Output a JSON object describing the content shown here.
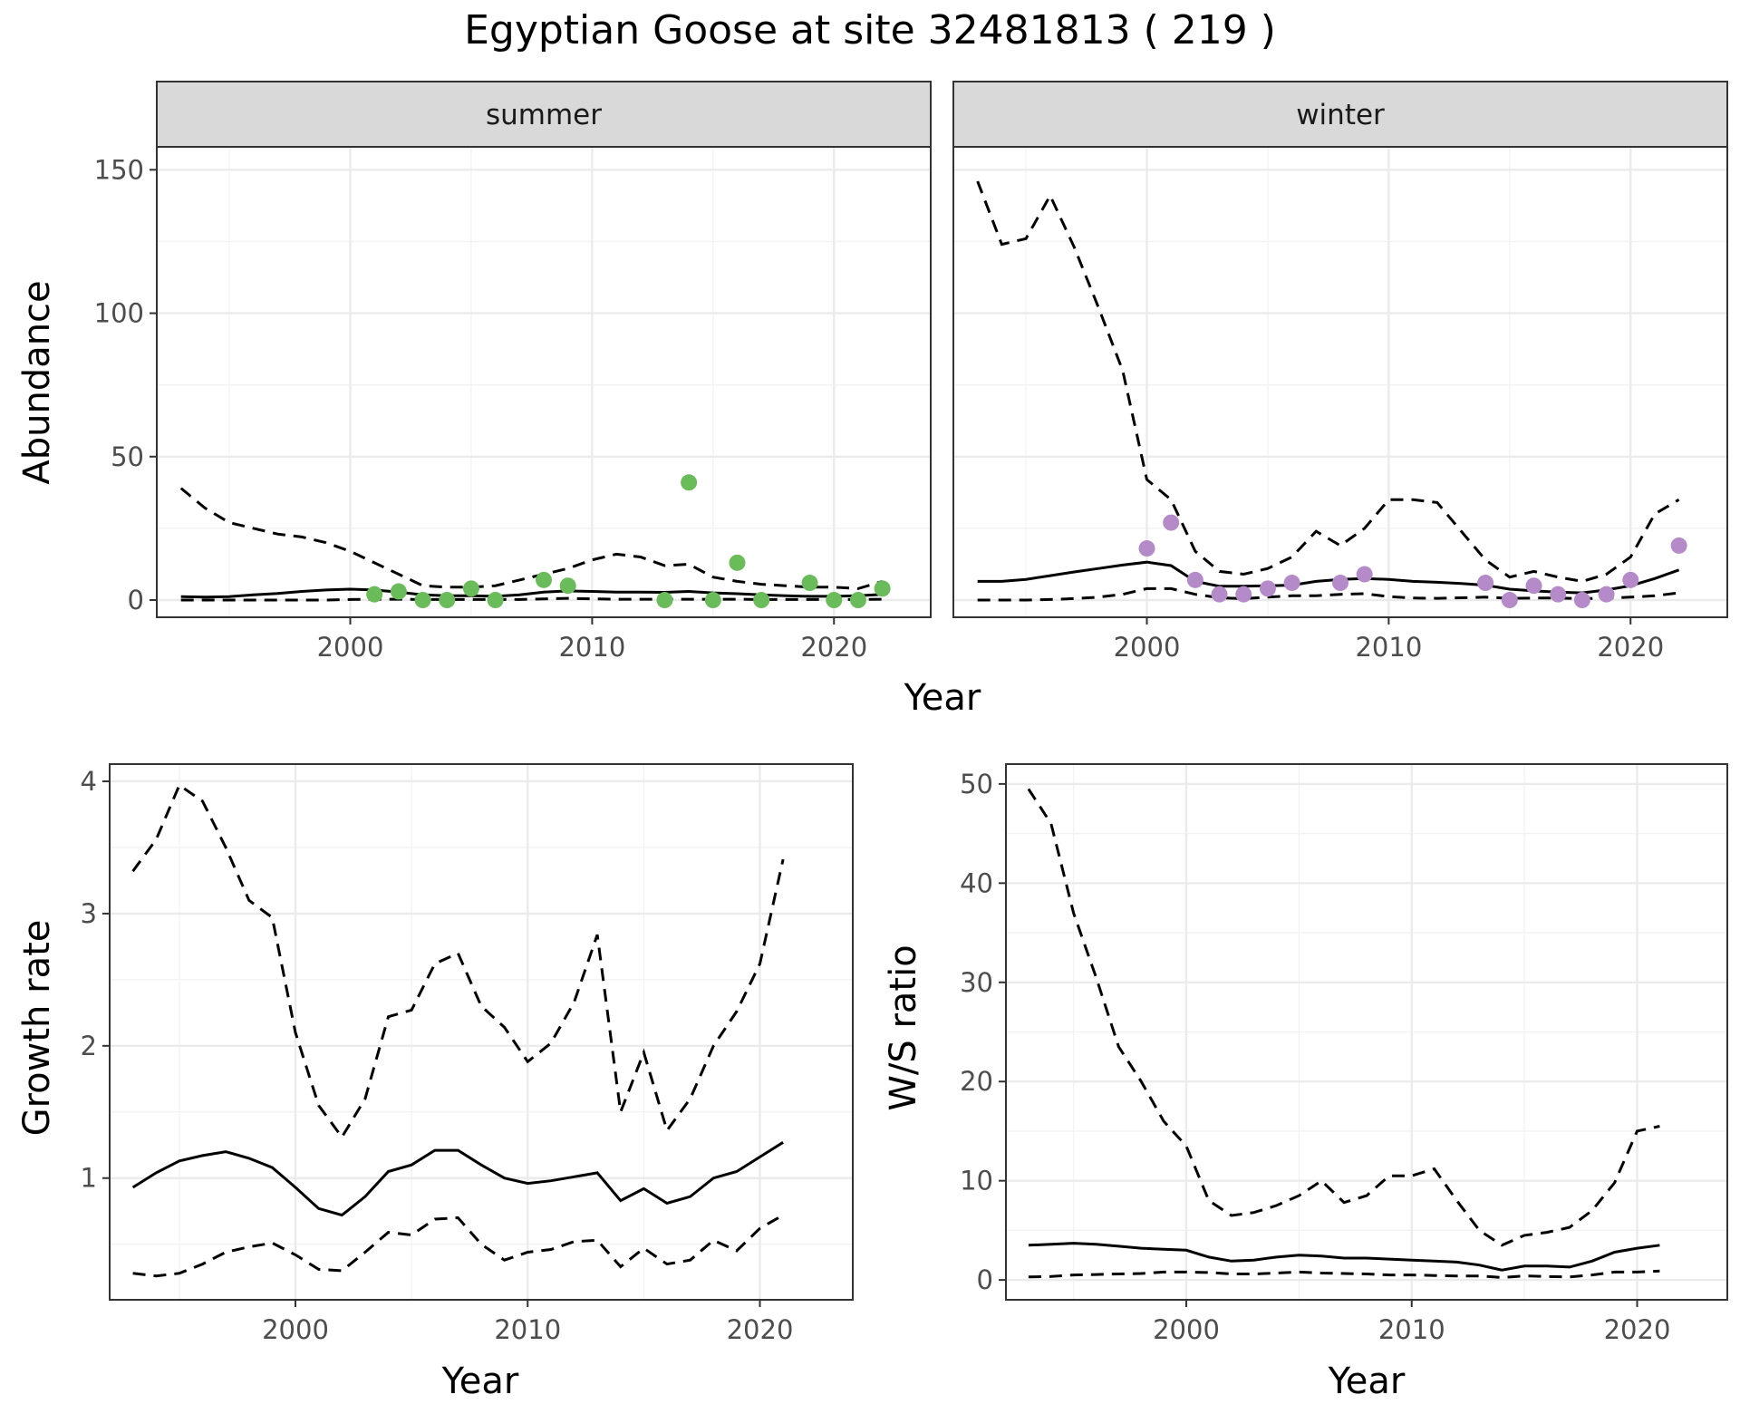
{
  "figure": {
    "title": "Egyptian Goose at site 32481813 ( 219 )"
  },
  "chart_data": [
    {
      "type": "line",
      "facet": "summer",
      "strip_label": "summer",
      "xlabel": "Year",
      "ylabel": "Abundance",
      "xlim": [
        1992,
        2024
      ],
      "ylim": [
        -6,
        158
      ],
      "xticks": [
        2000,
        2010,
        2020
      ],
      "yticks": [
        0,
        50,
        100,
        150
      ],
      "grid": true,
      "point_color": "#6abb5a",
      "series": [
        {
          "role": "mean",
          "style": "solid",
          "x": [
            1993,
            1994,
            1995,
            1996,
            1997,
            1998,
            1999,
            2000,
            2001,
            2002,
            2003,
            2004,
            2005,
            2006,
            2007,
            2008,
            2009,
            2010,
            2011,
            2012,
            2013,
            2014,
            2015,
            2016,
            2017,
            2018,
            2019,
            2020,
            2021,
            2022
          ],
          "y": [
            1.2,
            1.0,
            1.2,
            1.8,
            2.3,
            3.0,
            3.5,
            3.8,
            3.5,
            2.8,
            1.8,
            1.5,
            1.5,
            1.3,
            1.8,
            2.8,
            3.2,
            3.0,
            2.8,
            2.8,
            2.7,
            3.0,
            2.5,
            2.2,
            1.8,
            1.5,
            1.3,
            1.3,
            1.5,
            2.0
          ]
        },
        {
          "role": "upper",
          "style": "dashed",
          "x": [
            1993,
            1994,
            1995,
            1996,
            1997,
            1998,
            1999,
            2000,
            2001,
            2002,
            2003,
            2004,
            2005,
            2006,
            2007,
            2008,
            2009,
            2010,
            2011,
            2012,
            2013,
            2014,
            2015,
            2016,
            2017,
            2018,
            2019,
            2020,
            2021,
            2022
          ],
          "y": [
            39,
            32,
            27,
            25,
            23,
            22,
            20,
            17,
            13,
            9,
            5,
            4.5,
            4.5,
            5,
            7,
            9,
            11,
            14,
            16,
            15,
            12,
            12.5,
            8,
            6.5,
            5.5,
            5,
            4.5,
            4.5,
            4,
            6.5
          ]
        },
        {
          "role": "lower",
          "style": "dashed",
          "x": [
            1993,
            1994,
            1995,
            1996,
            1997,
            1998,
            1999,
            2000,
            2001,
            2002,
            2003,
            2004,
            2005,
            2006,
            2007,
            2008,
            2009,
            2010,
            2011,
            2012,
            2013,
            2014,
            2015,
            2016,
            2017,
            2018,
            2019,
            2020,
            2021,
            2022
          ],
          "y": [
            0,
            0,
            0,
            0,
            0,
            0,
            0,
            0.2,
            0.3,
            0.3,
            0.2,
            0.2,
            0.2,
            0.2,
            0.2,
            0.4,
            0.6,
            0.4,
            0.3,
            0.3,
            0.3,
            0.3,
            0.3,
            0.3,
            0.2,
            0.2,
            0.2,
            0.2,
            0.2,
            0.3
          ]
        }
      ],
      "points": {
        "x": [
          2001,
          2002,
          2003,
          2004,
          2005,
          2006,
          2008,
          2009,
          2013,
          2014,
          2015,
          2016,
          2017,
          2019,
          2020,
          2021,
          2022
        ],
        "y": [
          2,
          3,
          0,
          0,
          4,
          0,
          7,
          5,
          0,
          41,
          0,
          13,
          0,
          6,
          0,
          0,
          4
        ]
      }
    },
    {
      "type": "line",
      "facet": "winter",
      "strip_label": "winter",
      "xlabel": "Year",
      "ylabel": "Abundance",
      "xlim": [
        1992,
        2024
      ],
      "ylim": [
        -6,
        158
      ],
      "xticks": [
        2000,
        2010,
        2020
      ],
      "yticks": [
        0,
        50,
        100,
        150
      ],
      "grid": true,
      "point_color": "#b48bc8",
      "series": [
        {
          "role": "mean",
          "style": "solid",
          "x": [
            1993,
            1994,
            1995,
            1996,
            1997,
            1998,
            1999,
            2000,
            2001,
            2002,
            2003,
            2004,
            2005,
            2006,
            2007,
            2008,
            2009,
            2010,
            2011,
            2012,
            2013,
            2014,
            2015,
            2016,
            2017,
            2018,
            2019,
            2020,
            2021,
            2022
          ],
          "y": [
            6.5,
            6.5,
            7.2,
            8.5,
            9.8,
            11,
            12.2,
            13.2,
            12,
            6.5,
            4.8,
            4.8,
            5,
            5.2,
            6.5,
            7.2,
            7.5,
            7.2,
            6.5,
            6.2,
            5.8,
            5.2,
            3.8,
            3.2,
            2.8,
            2.5,
            3.5,
            5,
            7.5,
            10.5
          ]
        },
        {
          "role": "upper",
          "style": "dashed",
          "x": [
            1993,
            1994,
            1995,
            1996,
            1997,
            1998,
            1999,
            2000,
            2001,
            2002,
            2003,
            2004,
            2005,
            2006,
            2007,
            2008,
            2009,
            2010,
            2011,
            2012,
            2013,
            2014,
            2015,
            2016,
            2017,
            2018,
            2019,
            2020,
            2021,
            2022
          ],
          "y": [
            146,
            124,
            126,
            141,
            123,
            102,
            80,
            42,
            35,
            17,
            10,
            9,
            11,
            15,
            24,
            19,
            25,
            35,
            35,
            34,
            24,
            14,
            8,
            10,
            8,
            6.5,
            9,
            15,
            30,
            35
          ]
        },
        {
          "role": "lower",
          "style": "dashed",
          "x": [
            1993,
            1994,
            1995,
            1996,
            1997,
            1998,
            1999,
            2000,
            2001,
            2002,
            2003,
            2004,
            2005,
            2006,
            2007,
            2008,
            2009,
            2010,
            2011,
            2012,
            2013,
            2014,
            2015,
            2016,
            2017,
            2018,
            2019,
            2020,
            2021,
            2022
          ],
          "y": [
            0,
            0,
            0,
            0.2,
            0.5,
            1,
            2,
            4,
            4,
            2,
            0.8,
            0.5,
            1,
            1.5,
            1.5,
            2,
            2.2,
            1.2,
            0.7,
            0.6,
            0.8,
            1,
            0.6,
            0.7,
            0.7,
            0.5,
            0.6,
            1,
            1.5,
            2.5
          ]
        }
      ],
      "points": {
        "x": [
          2000,
          2001,
          2002,
          2003,
          2004,
          2005,
          2006,
          2008,
          2009,
          2014,
          2015,
          2016,
          2017,
          2018,
          2019,
          2020,
          2022
        ],
        "y": [
          18,
          27,
          7,
          2,
          2,
          4,
          6,
          6,
          9,
          6,
          0,
          5,
          2,
          0,
          2,
          7,
          19
        ]
      }
    },
    {
      "type": "line",
      "xlabel": "Year",
      "ylabel": "Growth rate",
      "xlim": [
        1992,
        2024
      ],
      "ylim": [
        0.08,
        4.13
      ],
      "xticks": [
        2000,
        2010,
        2020
      ],
      "yticks": [
        1,
        2,
        3,
        4
      ],
      "grid": true,
      "series": [
        {
          "role": "mean",
          "style": "solid",
          "x": [
            1993,
            1994,
            1995,
            1996,
            1997,
            1998,
            1999,
            2000,
            2001,
            2002,
            2003,
            2004,
            2005,
            2006,
            2007,
            2008,
            2009,
            2010,
            2011,
            2012,
            2013,
            2014,
            2015,
            2016,
            2017,
            2018,
            2019,
            2020,
            2021
          ],
          "y": [
            0.93,
            1.04,
            1.13,
            1.17,
            1.2,
            1.15,
            1.08,
            0.93,
            0.77,
            0.72,
            0.86,
            1.05,
            1.1,
            1.21,
            1.21,
            1.1,
            1.0,
            0.96,
            0.98,
            1.01,
            1.04,
            0.83,
            0.92,
            0.81,
            0.86,
            1.0,
            1.05,
            1.16,
            1.27
          ]
        },
        {
          "role": "upper",
          "style": "dashed",
          "x": [
            1993,
            1994,
            1995,
            1996,
            1997,
            1998,
            1999,
            2000,
            2001,
            2002,
            2003,
            2004,
            2005,
            2006,
            2007,
            2008,
            2009,
            2010,
            2011,
            2012,
            2013,
            2014,
            2015,
            2016,
            2017,
            2018,
            2019,
            2020,
            2021
          ],
          "y": [
            3.32,
            3.56,
            3.97,
            3.85,
            3.5,
            3.1,
            2.97,
            2.1,
            1.55,
            1.31,
            1.6,
            2.22,
            2.27,
            2.62,
            2.7,
            2.3,
            2.14,
            1.88,
            2.02,
            2.33,
            2.84,
            1.5,
            1.95,
            1.36,
            1.6,
            2.0,
            2.26,
            2.62,
            3.41
          ]
        },
        {
          "role": "lower",
          "style": "dashed",
          "x": [
            1993,
            1994,
            1995,
            1996,
            1997,
            1998,
            1999,
            2000,
            2001,
            2002,
            2003,
            2004,
            2005,
            2006,
            2007,
            2008,
            2009,
            2010,
            2011,
            2012,
            2013,
            2014,
            2015,
            2016,
            2017,
            2018,
            2019,
            2020,
            2021
          ],
          "y": [
            0.28,
            0.26,
            0.28,
            0.35,
            0.44,
            0.48,
            0.51,
            0.42,
            0.31,
            0.3,
            0.44,
            0.59,
            0.57,
            0.69,
            0.7,
            0.5,
            0.38,
            0.44,
            0.46,
            0.52,
            0.53,
            0.33,
            0.47,
            0.35,
            0.38,
            0.53,
            0.45,
            0.62,
            0.72
          ]
        }
      ]
    },
    {
      "type": "line",
      "xlabel": "Year",
      "ylabel": "W/S ratio",
      "xlim": [
        1992,
        2024
      ],
      "ylim": [
        -2,
        52
      ],
      "xticks": [
        2000,
        2010,
        2020
      ],
      "yticks": [
        0,
        10,
        20,
        30,
        40,
        50
      ],
      "grid": true,
      "series": [
        {
          "role": "mean",
          "style": "solid",
          "x": [
            1993,
            1994,
            1995,
            1996,
            1997,
            1998,
            1999,
            2000,
            2001,
            2002,
            2003,
            2004,
            2005,
            2006,
            2007,
            2008,
            2009,
            2010,
            2011,
            2012,
            2013,
            2014,
            2015,
            2016,
            2017,
            2018,
            2019,
            2020,
            2021
          ],
          "y": [
            3.5,
            3.6,
            3.7,
            3.6,
            3.4,
            3.2,
            3.1,
            3.0,
            2.3,
            1.9,
            2.0,
            2.3,
            2.5,
            2.4,
            2.2,
            2.2,
            2.1,
            2.0,
            1.9,
            1.8,
            1.5,
            1.0,
            1.4,
            1.4,
            1.3,
            1.9,
            2.8,
            3.2,
            3.5
          ]
        },
        {
          "role": "upper",
          "style": "dashed",
          "x": [
            1993,
            1994,
            1995,
            1996,
            1997,
            1998,
            1999,
            2000,
            2001,
            2002,
            2003,
            2004,
            2005,
            2006,
            2007,
            2008,
            2009,
            2010,
            2011,
            2012,
            2013,
            2014,
            2015,
            2016,
            2017,
            2018,
            2019,
            2020,
            2021
          ],
          "y": [
            49.5,
            46,
            37,
            30.5,
            23.5,
            20,
            16,
            13.5,
            8,
            6.5,
            6.8,
            7.5,
            8.5,
            10,
            7.8,
            8.5,
            10.5,
            10.5,
            11.2,
            8,
            5,
            3.5,
            4.5,
            4.8,
            5.3,
            7,
            9.8,
            15,
            15.5
          ]
        },
        {
          "role": "lower",
          "style": "dashed",
          "x": [
            1993,
            1994,
            1995,
            1996,
            1997,
            1998,
            1999,
            2000,
            2001,
            2002,
            2003,
            2004,
            2005,
            2006,
            2007,
            2008,
            2009,
            2010,
            2011,
            2012,
            2013,
            2014,
            2015,
            2016,
            2017,
            2018,
            2019,
            2020,
            2021
          ],
          "y": [
            0.3,
            0.35,
            0.5,
            0.55,
            0.6,
            0.65,
            0.8,
            0.8,
            0.75,
            0.6,
            0.6,
            0.7,
            0.8,
            0.7,
            0.65,
            0.6,
            0.5,
            0.5,
            0.45,
            0.4,
            0.4,
            0.25,
            0.4,
            0.35,
            0.3,
            0.5,
            0.8,
            0.8,
            0.9
          ]
        }
      ]
    }
  ]
}
